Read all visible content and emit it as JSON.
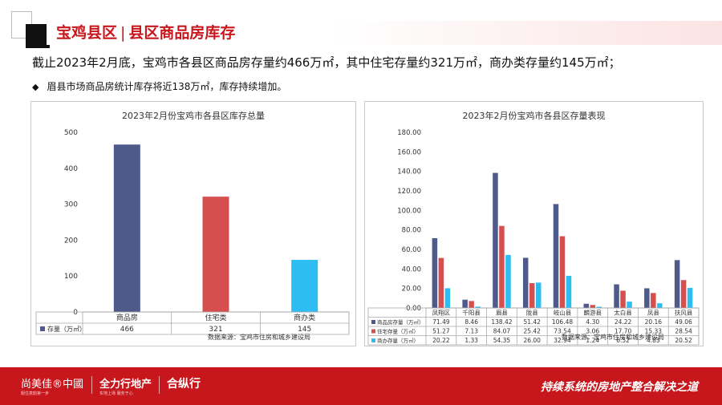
{
  "header": {
    "title_part1": "宝鸡县区",
    "separator": "|",
    "title_part2": "县区商品房库存"
  },
  "summary": "截止2023年2月底，宝鸡市各县区商品房存量约466万㎡，其中住宅存量约321万㎡，商办类存量约145万㎡；",
  "bullet": {
    "marker": "◆",
    "text": "眉县市场商品房统计库存将近138万㎡，库存持续增加。"
  },
  "footer": {
    "brand1": "尚美佳®中國",
    "brand1_sub": "服住意韵第一步",
    "brand2": "全力行地产",
    "brand2_sub": "实地上场 服务于心",
    "brand3": "合纵行",
    "slogan": "持续系统的房地产整合解决之道"
  },
  "colors": {
    "brand_red": "#c8161d",
    "series": [
      "#4e5a8a",
      "#d64f4f",
      "#2dbdf2"
    ]
  },
  "chart_data": [
    {
      "type": "bar",
      "title": "2023年2月份宝鸡市各县区库存总量",
      "categories": [
        "商品房",
        "住宅类",
        "商办类"
      ],
      "series": [
        {
          "name": "存量（万㎡）",
          "values": [
            466,
            321,
            145
          ]
        }
      ],
      "value_labels": [
        "466",
        "321",
        "145"
      ],
      "bar_colors": [
        "#4e5a8a",
        "#d64f4f",
        "#2dbdf2"
      ],
      "ylim": [
        0,
        500
      ],
      "yticks": [
        "0",
        "100",
        "200",
        "300",
        "400",
        "500"
      ],
      "legend": "data-table",
      "source": "数据来源：宝鸡市住房和城乡建设局"
    },
    {
      "type": "bar",
      "title": "2023年2月份宝鸡市各县区存量表现",
      "categories": [
        "凤翔区",
        "千阳县",
        "眉县",
        "陇县",
        "岐山县",
        "麟游县",
        "太白县",
        "凤县",
        "扶风县"
      ],
      "series": [
        {
          "name": "商品房存量（万㎡）",
          "values": [
            71.49,
            8.46,
            138.42,
            51.42,
            106.48,
            4.3,
            24.22,
            20.16,
            49.06
          ],
          "labels": [
            "71.49",
            "8.46",
            "138.42",
            "51.42",
            "106.48",
            "4.30",
            "24.22",
            "20.16",
            "49.06"
          ]
        },
        {
          "name": "住宅存量（万㎡）",
          "values": [
            51.27,
            7.13,
            84.07,
            25.42,
            73.54,
            3.06,
            17.7,
            15.33,
            28.54
          ],
          "labels": [
            "51.27",
            "7.13",
            "84.07",
            "25.42",
            "73.54",
            "3.06",
            "17.70",
            "15.33",
            "28.54"
          ]
        },
        {
          "name": "商办存量（万㎡）",
          "values": [
            20.22,
            1.33,
            54.35,
            26.0,
            32.94,
            1.24,
            6.52,
            4.83,
            20.52
          ],
          "labels": [
            "20.22",
            "1.33",
            "54.35",
            "26.00",
            "32.94",
            "1.24",
            "6.52",
            "4.83",
            "20.52"
          ]
        }
      ],
      "ylim": [
        0,
        180
      ],
      "yticks": [
        "0.00",
        "20.00",
        "40.00",
        "60.00",
        "80.00",
        "100.00",
        "120.00",
        "140.00",
        "160.00",
        "180.00"
      ],
      "legend": "data-table",
      "source": "数据来源：宝鸡市住房和城乡建设局"
    }
  ]
}
